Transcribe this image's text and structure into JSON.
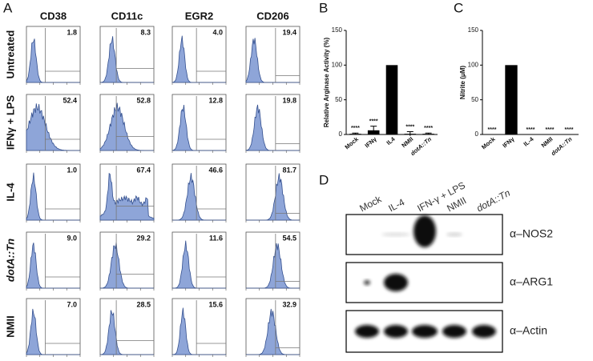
{
  "panel_a": {
    "panel_label": "A",
    "columns": [
      "CD38",
      "CD11c",
      "EGR2",
      "CD206"
    ],
    "rows": [
      "Untreated",
      "IFNγ + LPS",
      "IL-4",
      "dotA::Tn",
      "NMII"
    ],
    "values": [
      [
        "1.8",
        "8.3",
        "4.0",
        "19.4"
      ],
      [
        "52.4",
        "52.8",
        "12.8",
        "19.8"
      ],
      [
        "1.0",
        "67.4",
        "46.6",
        "81.7"
      ],
      [
        "9.0",
        "29.2",
        "11.6",
        "54.5"
      ],
      [
        "7.0",
        "28.5",
        "15.6",
        "32.9"
      ]
    ]
  },
  "chart_data": [
    {
      "type": "bar",
      "panel_label": "B",
      "ylabel": "Relative Arginase Activity (%)",
      "categories": [
        "Mock",
        "IFNγ",
        "IL4",
        "NMII",
        "dotA::Tn"
      ],
      "values": [
        1,
        6,
        100,
        1,
        1
      ],
      "errors": [
        1,
        6,
        0,
        3,
        1
      ],
      "annotations": [
        "****",
        "****",
        null,
        "****",
        "****"
      ],
      "color": "#000000",
      "ylim": [
        0,
        150
      ],
      "yticks": [
        0,
        50,
        100,
        150
      ]
    },
    {
      "type": "bar",
      "panel_label": "C",
      "ylabel": "Nitrite (μM)",
      "categories": [
        "Mock",
        "IFNγ",
        "IL-4",
        "NMII",
        "dotA::Tn"
      ],
      "values": [
        0,
        100,
        0,
        0,
        0
      ],
      "errors": [
        0,
        0,
        0,
        0,
        0
      ],
      "annotations": [
        "****",
        null,
        "****",
        "****",
        "****"
      ],
      "color": "#000000",
      "ylim": [
        0,
        150
      ],
      "yticks": [
        0,
        50,
        100,
        150
      ]
    }
  ],
  "panel_d": {
    "panel_label": "D",
    "lanes": [
      "Mock",
      "IL-4",
      "IFN-γ + LPS",
      "NMII",
      "dotA::Tn"
    ],
    "blots": [
      "α–NOS2",
      "α–ARG1",
      "α–Actin"
    ]
  }
}
